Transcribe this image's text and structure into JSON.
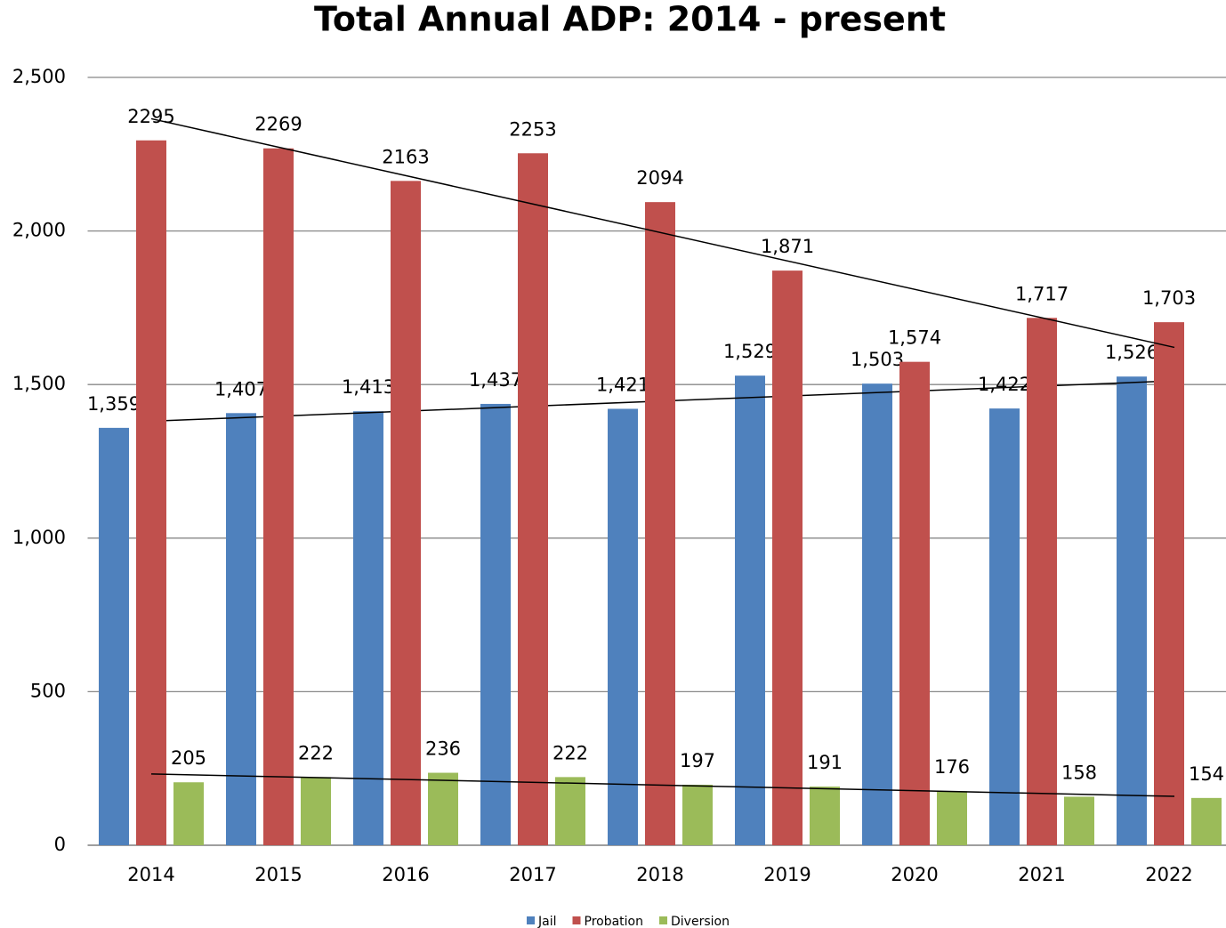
{
  "chart_data": {
    "type": "bar",
    "title": "Total Annual ADP: 2014 - present",
    "categories": [
      "2014",
      "2015",
      "2016",
      "2017",
      "2018",
      "2019",
      "2020",
      "2021",
      "2022"
    ],
    "series": [
      {
        "name": "Jail",
        "color": "#4f81bd",
        "values": [
          1359,
          1407,
          1413,
          1437,
          1421,
          1529,
          1503,
          1422,
          1526
        ],
        "value_labels": [
          "1,359",
          "1,407",
          "1,413",
          "1,437",
          "1,421",
          "1,529",
          "1,503",
          "1,422",
          "1,526"
        ]
      },
      {
        "name": "Probation",
        "color": "#c0504d",
        "values": [
          2295,
          2269,
          2163,
          2253,
          2094,
          1871,
          1574,
          1717,
          1703
        ],
        "value_labels": [
          "2295",
          "2269",
          "2163",
          "2253",
          "2094",
          "1,871",
          "1,574",
          "1,717",
          "1,703"
        ]
      },
      {
        "name": "Diversion",
        "color": "#9bbb59",
        "values": [
          205,
          222,
          236,
          222,
          197,
          191,
          176,
          158,
          154
        ]
      }
    ],
    "ylim": [
      0,
      2500
    ],
    "yticks": [
      0,
      500,
      {
        "value": 1000,
        "label": "1,000"
      },
      {
        "value": 1500,
        "label": "1,500"
      },
      {
        "value": 2000,
        "label": "2,000"
      },
      {
        "value": 2500,
        "label": "2,500"
      }
    ],
    "grid": true,
    "trendline": true,
    "legend": "bottom"
  }
}
